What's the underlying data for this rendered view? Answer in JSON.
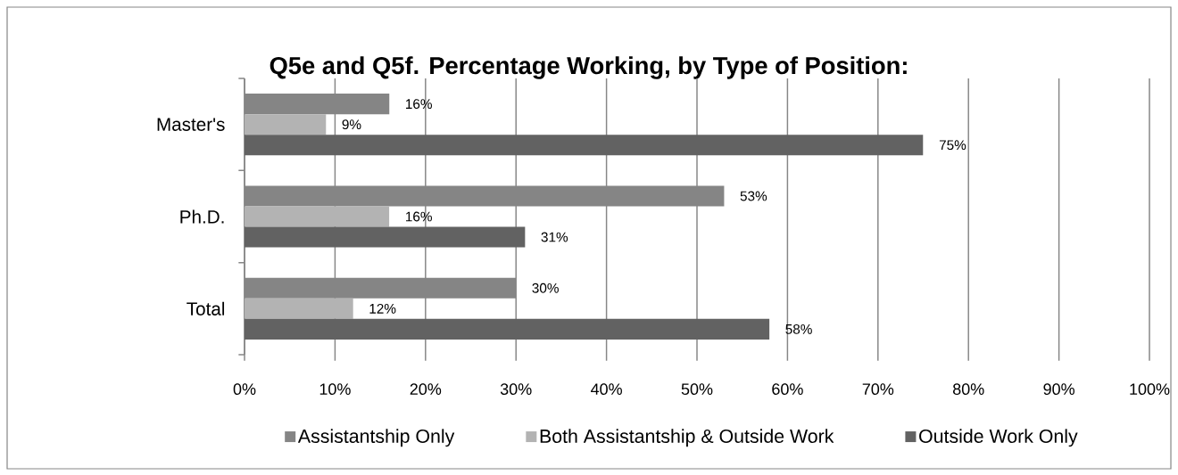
{
  "chart_data": {
    "type": "bar",
    "orientation": "horizontal",
    "title": "Q5e and Q5f. Percentage Working, by Type of Position:",
    "categories": [
      "Master's",
      "Ph.D.",
      "Total"
    ],
    "series": [
      {
        "name": "Assistantship Only",
        "color": "#858585",
        "values": [
          16,
          53,
          30
        ],
        "value_labels": [
          "16%",
          "53%",
          "30%"
        ]
      },
      {
        "name": "Both Assistantship & Outside Work",
        "color": "#b3b3b3",
        "values": [
          9,
          16,
          12
        ],
        "value_labels": [
          "9%",
          "16%",
          "12%"
        ]
      },
      {
        "name": "Outside Work Only",
        "color": "#626262",
        "values": [
          75,
          31,
          58
        ],
        "value_labels": [
          "75%",
          "31%",
          "58%"
        ]
      }
    ],
    "xlim": [
      0,
      100
    ],
    "xticks": [
      {
        "value": 0,
        "label": "0%"
      },
      {
        "value": 10,
        "label": "10%"
      },
      {
        "value": 20,
        "label": "20%"
      },
      {
        "value": 30,
        "label": "30%"
      },
      {
        "value": 40,
        "label": "40%"
      },
      {
        "value": 50,
        "label": "50%"
      },
      {
        "value": 60,
        "label": "60%"
      },
      {
        "value": 70,
        "label": "70%"
      },
      {
        "value": 80,
        "label": "80%"
      },
      {
        "value": 90,
        "label": "90%"
      },
      {
        "value": 100,
        "label": "100%"
      }
    ],
    "grid": "x",
    "legend": "bottom"
  }
}
